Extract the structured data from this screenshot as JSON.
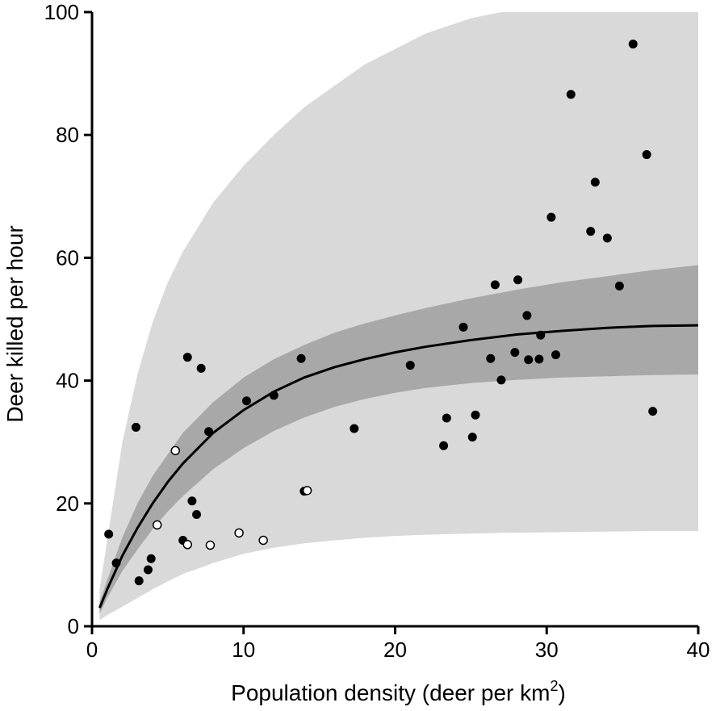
{
  "chart_data": {
    "type": "scatter",
    "xlabel": "Population density (deer per km",
    "xlabel_sup": "2",
    "xlabel_end": ")",
    "ylabel": "Deer killed per hour",
    "xlim": [
      0,
      40
    ],
    "ylim": [
      0,
      100
    ],
    "xticks": [
      0,
      10,
      20,
      30,
      40
    ],
    "yticks": [
      0,
      20,
      40,
      60,
      80,
      100
    ],
    "grid": false,
    "colors": {
      "outer_band": "#d9d9d9",
      "inner_band": "#a8a8a8",
      "curve": "#000000",
      "point": "#000000",
      "open_point_fill": "#ffffff"
    },
    "curve": {
      "x": [
        0.5,
        1,
        2,
        3,
        4,
        5,
        6,
        8,
        10,
        12,
        14,
        16,
        18,
        20,
        22,
        25,
        28,
        31,
        34,
        37,
        40
      ],
      "y": [
        3,
        6,
        11.5,
        16,
        20,
        23.5,
        26.5,
        31.5,
        35.2,
        38.2,
        40.5,
        42.2,
        43.5,
        44.6,
        45.5,
        46.6,
        47.5,
        48.1,
        48.6,
        48.9,
        49
      ]
    },
    "inner_band": {
      "x": [
        0.5,
        1,
        2,
        3,
        4,
        5,
        6,
        8,
        10,
        12,
        14,
        16,
        18,
        20,
        22,
        25,
        28,
        31,
        34,
        37,
        40
      ],
      "upper": [
        4,
        7.5,
        14.5,
        20,
        24.5,
        28,
        31.5,
        36.5,
        40.5,
        43.5,
        45.8,
        47.8,
        49.3,
        50.6,
        51.8,
        53.4,
        54.8,
        56,
        57,
        58,
        58.8
      ],
      "lower": [
        2,
        4.6,
        9,
        12.5,
        15.8,
        18.7,
        21.2,
        25.6,
        29,
        31.8,
        34,
        35.7,
        37,
        38,
        38.8,
        39.6,
        40.1,
        40.5,
        40.7,
        40.9,
        41
      ]
    },
    "outer_band": {
      "x": [
        0.5,
        1,
        2,
        3,
        4,
        5,
        6,
        8,
        10,
        12,
        14,
        16,
        18,
        20,
        22,
        25,
        27,
        30,
        34,
        37,
        40
      ],
      "upper": [
        6,
        14,
        30,
        41,
        49.5,
        56,
        61,
        69,
        75,
        80,
        84.5,
        88,
        91.5,
        94,
        96.5,
        99,
        100,
        100,
        100,
        100,
        100
      ],
      "lower": [
        1,
        1.8,
        3.2,
        4.6,
        6,
        7.3,
        8.5,
        10.3,
        11.8,
        12.8,
        13.5,
        14,
        14.4,
        14.7,
        14.9,
        15.1,
        15.2,
        15.3,
        15.4,
        15.5,
        15.5
      ]
    },
    "series": [
      {
        "marker": "filled",
        "points": [
          [
            1.1,
            15
          ],
          [
            1.6,
            10.3
          ],
          [
            2.9,
            32.4
          ],
          [
            3.1,
            7.4
          ],
          [
            3.7,
            9.2
          ],
          [
            3.9,
            11
          ],
          [
            6.0,
            14
          ],
          [
            6.3,
            43.8
          ],
          [
            6.6,
            20.4
          ],
          [
            6.9,
            18.2
          ],
          [
            7.2,
            42
          ],
          [
            7.7,
            31.7
          ],
          [
            10.2,
            36.7
          ],
          [
            12.0,
            37.6
          ],
          [
            13.8,
            43.6
          ],
          [
            14.0,
            22
          ],
          [
            17.3,
            32.2
          ],
          [
            21.0,
            42.5
          ],
          [
            23.2,
            29.4
          ],
          [
            23.4,
            33.9
          ],
          [
            24.5,
            48.7
          ],
          [
            25.1,
            30.8
          ],
          [
            25.3,
            34.4
          ],
          [
            26.3,
            43.6
          ],
          [
            26.6,
            55.6
          ],
          [
            27.0,
            40.1
          ],
          [
            27.9,
            44.6
          ],
          [
            28.1,
            56.4
          ],
          [
            28.7,
            50.6
          ],
          [
            28.8,
            43.4
          ],
          [
            29.5,
            43.5
          ],
          [
            29.6,
            47.4
          ],
          [
            30.3,
            66.6
          ],
          [
            30.6,
            44.2
          ],
          [
            31.6,
            86.6
          ],
          [
            32.9,
            64.3
          ],
          [
            33.2,
            72.3
          ],
          [
            34.0,
            63.2
          ],
          [
            34.8,
            55.4
          ],
          [
            35.7,
            94.8
          ],
          [
            36.6,
            76.8
          ],
          [
            37.0,
            35
          ]
        ]
      },
      {
        "marker": "open",
        "points": [
          [
            4.3,
            16.5
          ],
          [
            5.5,
            28.6
          ],
          [
            6.3,
            13.3
          ],
          [
            7.8,
            13.2
          ],
          [
            9.7,
            15.2
          ],
          [
            11.3,
            14
          ],
          [
            14.2,
            22.1
          ]
        ]
      }
    ]
  }
}
